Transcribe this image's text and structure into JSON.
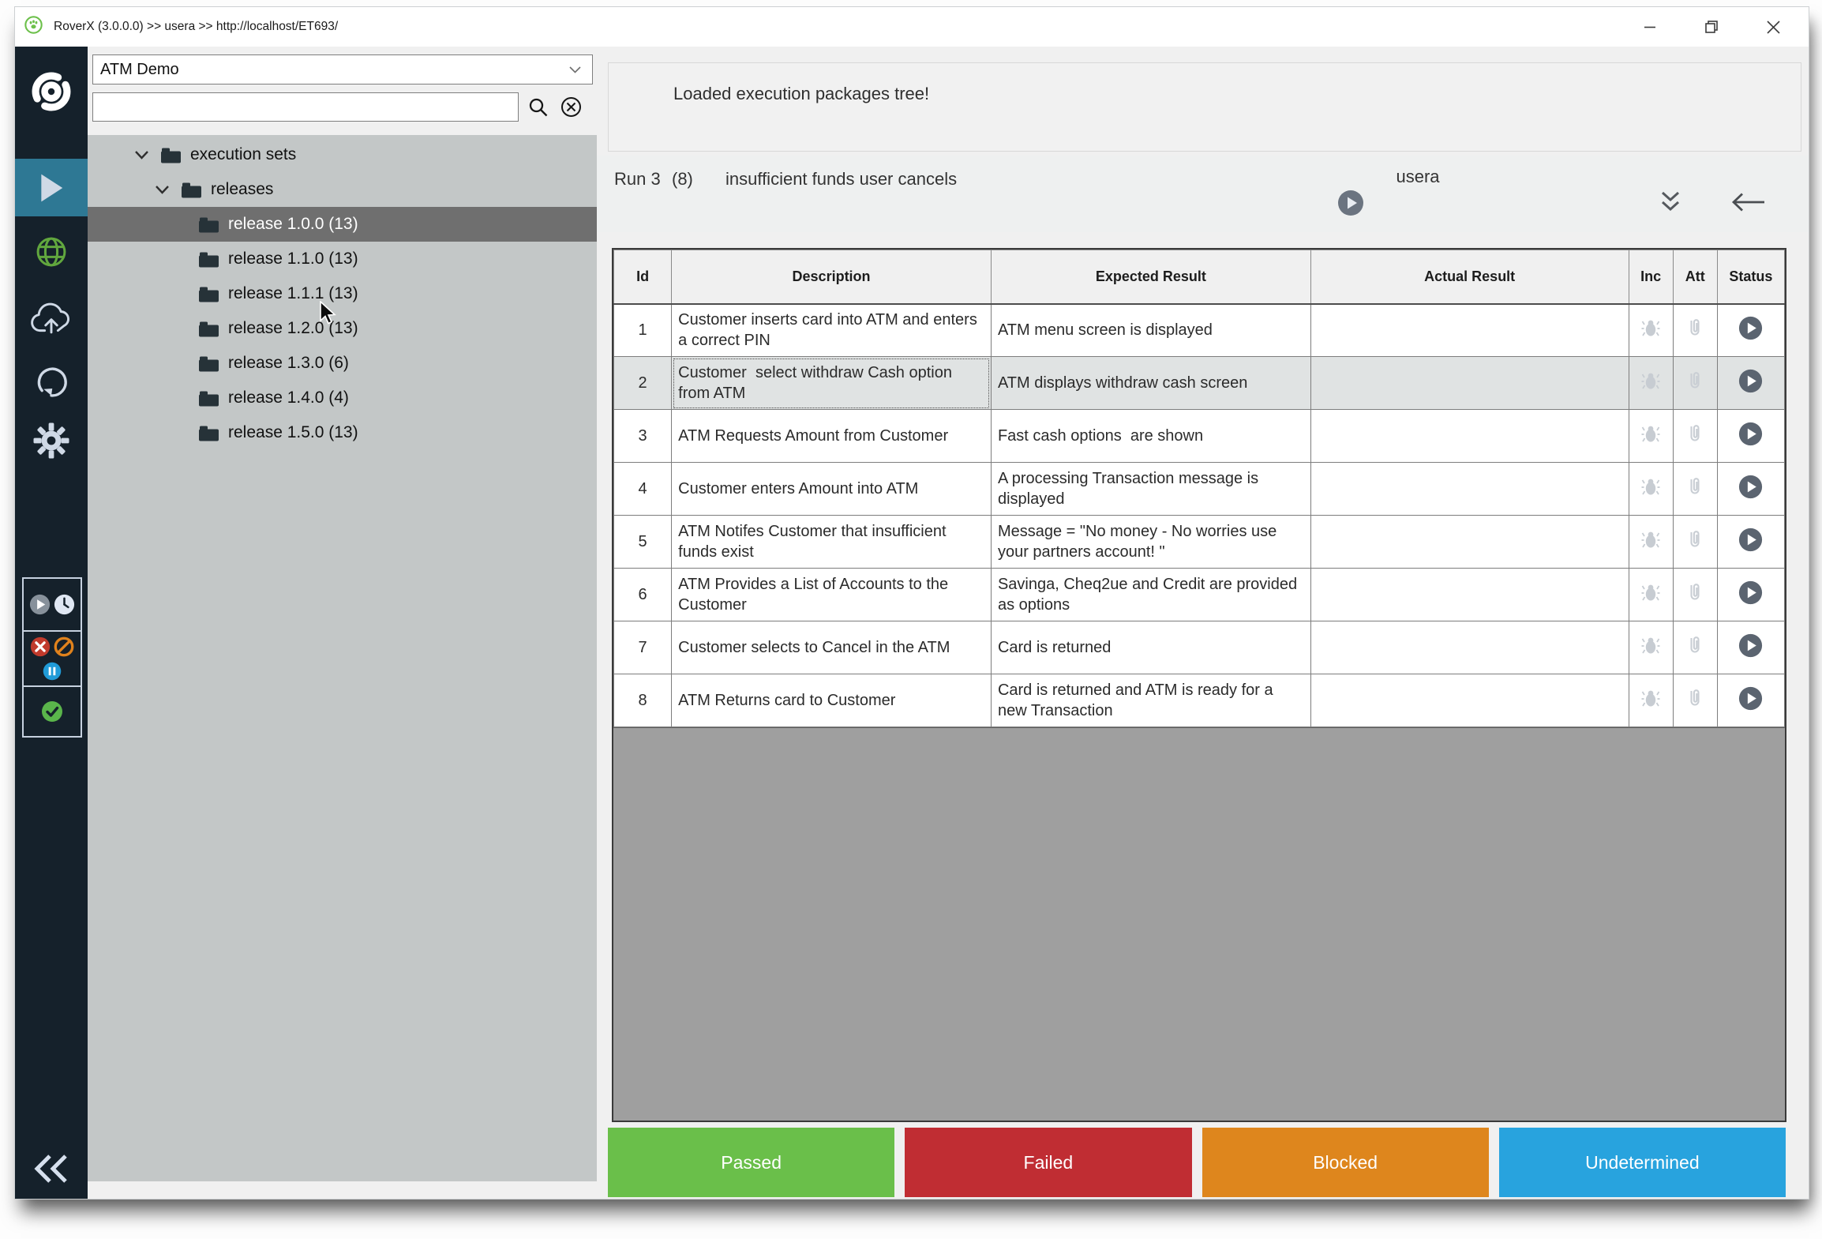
{
  "window": {
    "title": "RoverX (3.0.0.0) >> usera >> http://localhost/ET693/"
  },
  "colors": {
    "sidebar_bg": "#15212b",
    "sidebar_active": "#2e7894",
    "tree_bg": "#c3c7c7",
    "tree_selected_bg": "#6f6f6f",
    "void_bg": "#9f9f9f",
    "passed": "#6abf4a",
    "failed": "#c02d33",
    "blocked": "#de861d",
    "undetermined": "#28a3de"
  },
  "sidebar": {
    "icons": [
      "roverx-logo",
      "run-play",
      "web-globe",
      "cloud-upload",
      "restore",
      "settings"
    ],
    "active_icon": "run-play",
    "legend_icons": [
      [
        "play",
        "clock"
      ],
      [
        "failed-x",
        "blocked-ban",
        "paused"
      ],
      [
        "passed-check"
      ]
    ],
    "collapse_icon": "collapse-double-chevron-left"
  },
  "tree_panel": {
    "project_selector": {
      "value": "ATM Demo"
    },
    "search": {
      "value": ""
    },
    "items": [
      {
        "label": "execution sets",
        "level": 0,
        "expanded": true,
        "selected": false
      },
      {
        "label": "releases",
        "level": 1,
        "expanded": true,
        "selected": false
      },
      {
        "label": "release 1.0.0 (13)",
        "level": 2,
        "expanded": false,
        "selected": true
      },
      {
        "label": "release 1.1.0 (13)",
        "level": 2,
        "expanded": false,
        "selected": false
      },
      {
        "label": "release 1.1.1 (13)",
        "level": 2,
        "expanded": false,
        "selected": false
      },
      {
        "label": "release 1.2.0 (13)",
        "level": 2,
        "expanded": false,
        "selected": false
      },
      {
        "label": "release 1.3.0 (6)",
        "level": 2,
        "expanded": false,
        "selected": false
      },
      {
        "label": "release 1.4.0 (4)",
        "level": 2,
        "expanded": false,
        "selected": false
      },
      {
        "label": "release 1.5.0 (13)",
        "level": 2,
        "expanded": false,
        "selected": false
      }
    ]
  },
  "main": {
    "status_message": "Loaded execution packages tree!",
    "run_bar": {
      "run_label": "Run 3",
      "run_count": "(8)",
      "run_name": "insufficient funds user cancels",
      "user": "usera"
    },
    "table": {
      "columns": [
        "Id",
        "Description",
        "Expected Result",
        "Actual Result",
        "Inc",
        "Att",
        "Status"
      ],
      "rows": [
        {
          "id": "1",
          "description": "Customer inserts card into ATM and enters a correct PIN",
          "expected": "ATM menu screen is displayed",
          "actual": "",
          "selected": false
        },
        {
          "id": "2",
          "description": "Customer  select withdraw Cash option from ATM",
          "expected": "ATM displays withdraw cash screen",
          "actual": "",
          "selected": true
        },
        {
          "id": "3",
          "description": "ATM Requests Amount from Customer",
          "expected": "Fast cash options  are shown",
          "actual": "",
          "selected": false
        },
        {
          "id": "4",
          "description": "Customer enters Amount into ATM",
          "expected": "A processing Transaction message is displayed",
          "actual": "",
          "selected": false
        },
        {
          "id": "5",
          "description": "ATM Notifes Customer that insufficient funds exist",
          "expected": "Message = \"No money - No worries use your partners account! \"",
          "actual": "",
          "selected": false
        },
        {
          "id": "6",
          "description": "ATM Provides a List of Accounts to the Customer",
          "expected": "Savinga, Cheq2ue and Credit are provided as options",
          "actual": "",
          "selected": false
        },
        {
          "id": "7",
          "description": "Customer selects to Cancel in the ATM",
          "expected": "Card is returned",
          "actual": "",
          "selected": false
        },
        {
          "id": "8",
          "description": "ATM Returns card to Customer",
          "expected": "Card is returned and ATM is ready for a new Transaction",
          "actual": "",
          "selected": false
        }
      ]
    },
    "status_buttons": [
      {
        "label": "Passed",
        "color": "#6abf4a"
      },
      {
        "label": "Failed",
        "color": "#c02d33"
      },
      {
        "label": "Blocked",
        "color": "#de861d"
      },
      {
        "label": "Undetermined",
        "color": "#28a3de"
      }
    ]
  }
}
